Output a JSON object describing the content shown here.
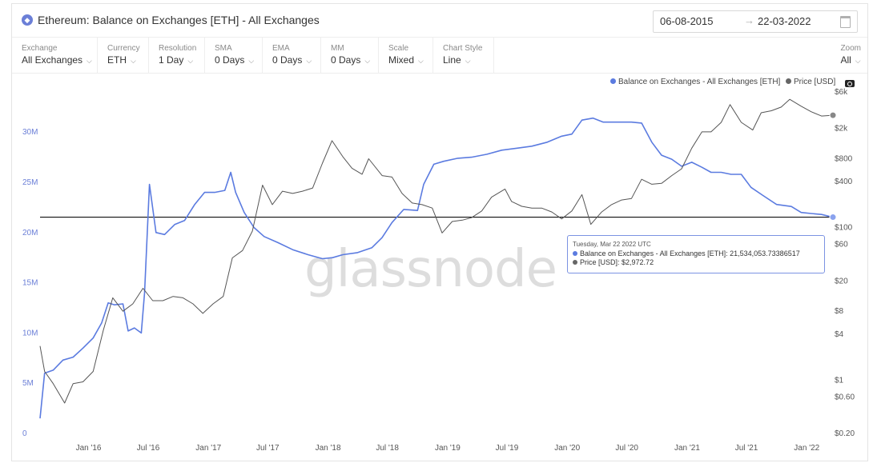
{
  "header": {
    "title_icon": "ethereum-icon",
    "title": "Ethereum: Balance on Exchanges [ETH] - All Exchanges",
    "date_from": "06-08-2015",
    "date_sep": "→",
    "date_to": "22-03-2022",
    "calendar_icon": "calendar-icon"
  },
  "controls": [
    {
      "label": "Exchange",
      "value": "All Exchanges"
    },
    {
      "label": "Currency",
      "value": "ETH"
    },
    {
      "label": "Resolution",
      "value": "1 Day"
    },
    {
      "label": "SMA",
      "value": "0 Days"
    },
    {
      "label": "EMA",
      "value": "0 Days"
    },
    {
      "label": "MM",
      "value": "0 Days"
    },
    {
      "label": "Scale",
      "value": "Mixed"
    },
    {
      "label": "Chart Style",
      "value": "Line"
    }
  ],
  "zoom": {
    "label": "Zoom",
    "value": "All"
  },
  "chevron_icon": "chevron-down-icon",
  "watermark": "glassnode",
  "tooltip": {
    "date": "Tuesday, Mar 22 2022 UTC",
    "balance_label": "Balance on Exchanges - All Exchanges [ETH]:",
    "balance_value": "21,534,053.73386517",
    "price_label": "Price [USD]:",
    "price_value": "$2,972.72"
  },
  "colors": {
    "balance": "#5b7be0",
    "price": "#555555",
    "accent": "#6b7fd7"
  },
  "chart_data": {
    "type": "line",
    "x_ticks": [
      "Jan '16",
      "Jul '16",
      "Jan '17",
      "Jul '17",
      "Jan '18",
      "Jul '18",
      "Jan '19",
      "Jul '19",
      "Jan '20",
      "Jul '20",
      "Jan '21",
      "Jul '21",
      "Jan '22"
    ],
    "x_tick_dates": [
      "2016-01-01",
      "2016-07-01",
      "2017-01-01",
      "2017-07-01",
      "2018-01-01",
      "2018-07-01",
      "2019-01-01",
      "2019-07-01",
      "2020-01-01",
      "2020-07-01",
      "2021-01-01",
      "2021-07-01",
      "2022-01-01"
    ],
    "x_range": [
      "2015-08-06",
      "2022-03-22"
    ],
    "y_left": {
      "ticks": [
        "0",
        "5M",
        "10M",
        "15M",
        "20M",
        "25M",
        "30M"
      ],
      "tick_values": [
        0,
        5000000,
        10000000,
        15000000,
        20000000,
        25000000,
        30000000
      ],
      "range": [
        0,
        34000000
      ],
      "scale": "linear"
    },
    "y_right": {
      "ticks": [
        "$0.20",
        "$0.60",
        "$1",
        "$4",
        "$8",
        "$20",
        "$60",
        "$100",
        "$400",
        "$800",
        "$2k",
        "$6k"
      ],
      "tick_values": [
        0.2,
        0.6,
        1,
        4,
        8,
        20,
        60,
        100,
        400,
        800,
        2000,
        6000
      ],
      "scale": "log"
    },
    "horizontal_line": 21534053.73,
    "series": [
      {
        "name": "Balance on Exchanges - All Exchanges [ETH]",
        "axis": "left",
        "points": [
          [
            "2015-08-06",
            1500000
          ],
          [
            "2015-08-20",
            6000000
          ],
          [
            "2015-09-15",
            6300000
          ],
          [
            "2015-10-15",
            7300000
          ],
          [
            "2015-11-15",
            7600000
          ],
          [
            "2015-12-15",
            8500000
          ],
          [
            "2016-01-15",
            9500000
          ],
          [
            "2016-02-10",
            11000000
          ],
          [
            "2016-03-01",
            13000000
          ],
          [
            "2016-03-20",
            12800000
          ],
          [
            "2016-04-15",
            12900000
          ],
          [
            "2016-05-01",
            10200000
          ],
          [
            "2016-05-20",
            10500000
          ],
          [
            "2016-06-10",
            10000000
          ],
          [
            "2016-06-20",
            14000000
          ],
          [
            "2016-07-05",
            24800000
          ],
          [
            "2016-07-25",
            20000000
          ],
          [
            "2016-08-20",
            19800000
          ],
          [
            "2016-09-20",
            20800000
          ],
          [
            "2016-10-20",
            21200000
          ],
          [
            "2016-11-20",
            22800000
          ],
          [
            "2016-12-20",
            24000000
          ],
          [
            "2017-01-20",
            24000000
          ],
          [
            "2017-02-20",
            24200000
          ],
          [
            "2017-03-10",
            26000000
          ],
          [
            "2017-03-25",
            24000000
          ],
          [
            "2017-04-20",
            22000000
          ],
          [
            "2017-05-20",
            20500000
          ],
          [
            "2017-06-20",
            19600000
          ],
          [
            "2017-08-01",
            19000000
          ],
          [
            "2017-09-15",
            18300000
          ],
          [
            "2017-11-01",
            17800000
          ],
          [
            "2017-12-15",
            17400000
          ],
          [
            "2018-01-15",
            17500000
          ],
          [
            "2018-02-15",
            17800000
          ],
          [
            "2018-04-01",
            18000000
          ],
          [
            "2018-05-15",
            18500000
          ],
          [
            "2018-06-15",
            19500000
          ],
          [
            "2018-07-15",
            21000000
          ],
          [
            "2018-08-20",
            22300000
          ],
          [
            "2018-10-01",
            22200000
          ],
          [
            "2018-10-20",
            24800000
          ],
          [
            "2018-11-20",
            26800000
          ],
          [
            "2018-12-20",
            27100000
          ],
          [
            "2019-02-01",
            27400000
          ],
          [
            "2019-03-15",
            27500000
          ],
          [
            "2019-05-01",
            27800000
          ],
          [
            "2019-06-15",
            28200000
          ],
          [
            "2019-08-01",
            28400000
          ],
          [
            "2019-09-15",
            28600000
          ],
          [
            "2019-11-01",
            29000000
          ],
          [
            "2019-12-15",
            29600000
          ],
          [
            "2020-01-15",
            29800000
          ],
          [
            "2020-02-15",
            31200000
          ],
          [
            "2020-03-20",
            31400000
          ],
          [
            "2020-04-20",
            31000000
          ],
          [
            "2020-06-01",
            31000000
          ],
          [
            "2020-07-15",
            31000000
          ],
          [
            "2020-08-15",
            30900000
          ],
          [
            "2020-09-15",
            29000000
          ],
          [
            "2020-10-15",
            27700000
          ],
          [
            "2020-11-15",
            27300000
          ],
          [
            "2020-12-15",
            26600000
          ],
          [
            "2021-01-15",
            27000000
          ],
          [
            "2021-02-15",
            26500000
          ],
          [
            "2021-03-15",
            26000000
          ],
          [
            "2021-04-15",
            26000000
          ],
          [
            "2021-05-15",
            25800000
          ],
          [
            "2021-06-15",
            25800000
          ],
          [
            "2021-07-15",
            24500000
          ],
          [
            "2021-08-20",
            23700000
          ],
          [
            "2021-10-01",
            22800000
          ],
          [
            "2021-11-15",
            22600000
          ],
          [
            "2021-12-15",
            22000000
          ],
          [
            "2022-01-15",
            21900000
          ],
          [
            "2022-02-15",
            21800000
          ],
          [
            "2022-03-22",
            21534053.73
          ]
        ]
      },
      {
        "name": "Price [USD]",
        "axis": "right",
        "points": [
          [
            "2015-08-06",
            2.8
          ],
          [
            "2015-08-20",
            1.3
          ],
          [
            "2015-09-15",
            0.9
          ],
          [
            "2015-10-20",
            0.5
          ],
          [
            "2015-11-15",
            0.9
          ],
          [
            "2015-12-15",
            0.95
          ],
          [
            "2016-01-15",
            1.3
          ],
          [
            "2016-02-15",
            4.5
          ],
          [
            "2016-03-15",
            12
          ],
          [
            "2016-04-15",
            8
          ],
          [
            "2016-05-15",
            10
          ],
          [
            "2016-06-15",
            16
          ],
          [
            "2016-07-15",
            11
          ],
          [
            "2016-08-15",
            11
          ],
          [
            "2016-09-15",
            12.5
          ],
          [
            "2016-10-15",
            12
          ],
          [
            "2016-11-15",
            10
          ],
          [
            "2016-12-15",
            7.5
          ],
          [
            "2017-01-15",
            10
          ],
          [
            "2017-02-15",
            12.5
          ],
          [
            "2017-03-15",
            40
          ],
          [
            "2017-04-15",
            50
          ],
          [
            "2017-05-15",
            90
          ],
          [
            "2017-06-15",
            360
          ],
          [
            "2017-07-15",
            200
          ],
          [
            "2017-08-15",
            300
          ],
          [
            "2017-09-15",
            280
          ],
          [
            "2017-10-15",
            300
          ],
          [
            "2017-11-15",
            330
          ],
          [
            "2017-12-15",
            700
          ],
          [
            "2018-01-13",
            1380
          ],
          [
            "2018-02-15",
            850
          ],
          [
            "2018-03-15",
            600
          ],
          [
            "2018-04-15",
            500
          ],
          [
            "2018-05-05",
            800
          ],
          [
            "2018-06-15",
            480
          ],
          [
            "2018-07-15",
            460
          ],
          [
            "2018-08-15",
            280
          ],
          [
            "2018-09-15",
            210
          ],
          [
            "2018-10-15",
            200
          ],
          [
            "2018-11-15",
            180
          ],
          [
            "2018-12-15",
            85
          ],
          [
            "2019-01-15",
            120
          ],
          [
            "2019-02-15",
            125
          ],
          [
            "2019-03-15",
            135
          ],
          [
            "2019-04-15",
            165
          ],
          [
            "2019-05-15",
            250
          ],
          [
            "2019-06-25",
            320
          ],
          [
            "2019-07-15",
            220
          ],
          [
            "2019-08-15",
            190
          ],
          [
            "2019-09-15",
            180
          ],
          [
            "2019-10-15",
            180
          ],
          [
            "2019-11-15",
            160
          ],
          [
            "2019-12-15",
            130
          ],
          [
            "2020-01-15",
            165
          ],
          [
            "2020-02-15",
            270
          ],
          [
            "2020-03-13",
            110
          ],
          [
            "2020-04-15",
            160
          ],
          [
            "2020-05-15",
            200
          ],
          [
            "2020-06-15",
            230
          ],
          [
            "2020-07-15",
            240
          ],
          [
            "2020-08-15",
            430
          ],
          [
            "2020-09-15",
            370
          ],
          [
            "2020-10-15",
            380
          ],
          [
            "2020-11-15",
            480
          ],
          [
            "2020-12-15",
            590
          ],
          [
            "2021-01-15",
            1100
          ],
          [
            "2021-02-15",
            1800
          ],
          [
            "2021-03-15",
            1800
          ],
          [
            "2021-04-15",
            2400
          ],
          [
            "2021-05-12",
            4100
          ],
          [
            "2021-06-15",
            2400
          ],
          [
            "2021-07-20",
            1900
          ],
          [
            "2021-08-15",
            3200
          ],
          [
            "2021-09-15",
            3400
          ],
          [
            "2021-10-15",
            3800
          ],
          [
            "2021-11-10",
            4800
          ],
          [
            "2021-12-15",
            3900
          ],
          [
            "2022-01-15",
            3300
          ],
          [
            "2022-02-15",
            2900
          ],
          [
            "2022-03-22",
            2972.72
          ]
        ]
      }
    ],
    "legend": [
      "Balance on Exchanges - All Exchanges [ETH]",
      "Price [USD]"
    ],
    "legend_position": "top-right",
    "grid": false
  }
}
